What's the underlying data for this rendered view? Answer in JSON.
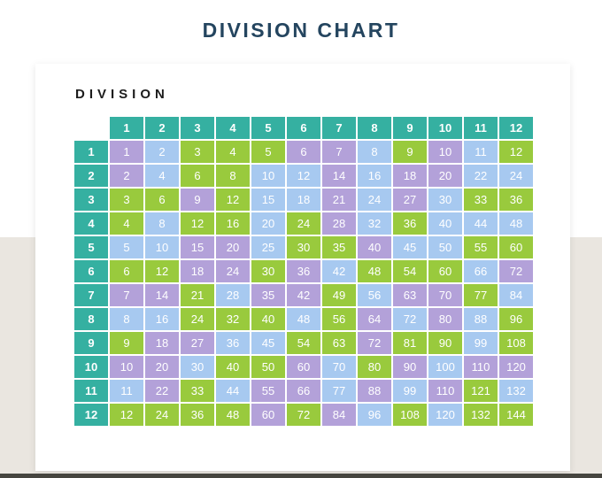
{
  "header": {
    "title": "DIVISION CHART"
  },
  "card": {
    "heading": "DIVISION"
  },
  "colors": {
    "title_text": "#24455f",
    "heading_text": "#1c1c1c",
    "page_top_bg": "#ffffff",
    "page_bottom_bg": "#eae6e0",
    "card_bg": "#ffffff",
    "header_cell": "#35b0a1",
    "cell_purple": "#b3a1d9",
    "cell_blue": "#a7c9f0",
    "cell_green": "#99ca3d",
    "cell_text": "#ffffff",
    "desk_edge": "#46453f"
  },
  "chart_data": {
    "type": "table",
    "title": "DIVISION CHART",
    "description": "12x12 division/multiplication grid; cell value = row header x column header; cells tinted purple (p), blue (b) or green (g); header row and column are teal",
    "col_headers": [
      1,
      2,
      3,
      4,
      5,
      6,
      7,
      8,
      9,
      10,
      11,
      12
    ],
    "row_headers": [
      1,
      2,
      3,
      4,
      5,
      6,
      7,
      8,
      9,
      10,
      11,
      12
    ],
    "values": [
      [
        1,
        2,
        3,
        4,
        5,
        6,
        7,
        8,
        9,
        10,
        11,
        12
      ],
      [
        2,
        4,
        6,
        8,
        10,
        12,
        14,
        16,
        18,
        20,
        22,
        24
      ],
      [
        3,
        6,
        9,
        12,
        15,
        18,
        21,
        24,
        27,
        30,
        33,
        36
      ],
      [
        4,
        8,
        12,
        16,
        20,
        24,
        28,
        32,
        36,
        40,
        44,
        48
      ],
      [
        5,
        10,
        15,
        20,
        25,
        30,
        35,
        40,
        45,
        50,
        55,
        60
      ],
      [
        6,
        12,
        18,
        24,
        30,
        36,
        42,
        48,
        54,
        60,
        66,
        72
      ],
      [
        7,
        14,
        21,
        28,
        35,
        42,
        49,
        56,
        63,
        70,
        77,
        84
      ],
      [
        8,
        16,
        24,
        32,
        40,
        48,
        56,
        64,
        72,
        80,
        88,
        96
      ],
      [
        9,
        18,
        27,
        36,
        45,
        54,
        63,
        72,
        81,
        90,
        99,
        108
      ],
      [
        10,
        20,
        30,
        40,
        50,
        60,
        70,
        80,
        90,
        100,
        110,
        120
      ],
      [
        11,
        22,
        33,
        44,
        55,
        66,
        77,
        88,
        99,
        110,
        121,
        132
      ],
      [
        12,
        24,
        36,
        48,
        60,
        72,
        84,
        96,
        108,
        120,
        132,
        144
      ]
    ],
    "cell_colors": [
      [
        "p",
        "b",
        "g",
        "g",
        "g",
        "p",
        "p",
        "b",
        "g",
        "p",
        "b",
        "g"
      ],
      [
        "p",
        "b",
        "g",
        "g",
        "b",
        "b",
        "p",
        "b",
        "p",
        "p",
        "b",
        "b"
      ],
      [
        "g",
        "g",
        "p",
        "g",
        "b",
        "b",
        "p",
        "b",
        "p",
        "b",
        "g",
        "g"
      ],
      [
        "g",
        "b",
        "g",
        "g",
        "b",
        "g",
        "p",
        "b",
        "g",
        "b",
        "b",
        "b"
      ],
      [
        "b",
        "b",
        "p",
        "p",
        "b",
        "g",
        "g",
        "p",
        "b",
        "b",
        "g",
        "g"
      ],
      [
        "g",
        "g",
        "p",
        "p",
        "g",
        "p",
        "b",
        "g",
        "g",
        "g",
        "b",
        "p"
      ],
      [
        "p",
        "p",
        "g",
        "b",
        "p",
        "p",
        "g",
        "b",
        "p",
        "p",
        "g",
        "b"
      ],
      [
        "b",
        "b",
        "g",
        "g",
        "g",
        "b",
        "g",
        "p",
        "b",
        "p",
        "b",
        "g"
      ],
      [
        "g",
        "p",
        "p",
        "b",
        "b",
        "g",
        "g",
        "p",
        "g",
        "g",
        "b",
        "g"
      ],
      [
        "p",
        "p",
        "b",
        "g",
        "g",
        "p",
        "b",
        "g",
        "p",
        "b",
        "p",
        "p"
      ],
      [
        "b",
        "p",
        "g",
        "b",
        "p",
        "p",
        "b",
        "p",
        "b",
        "p",
        "g",
        "b"
      ],
      [
        "g",
        "g",
        "g",
        "g",
        "p",
        "g",
        "p",
        "b",
        "g",
        "b",
        "g",
        "g"
      ]
    ]
  }
}
